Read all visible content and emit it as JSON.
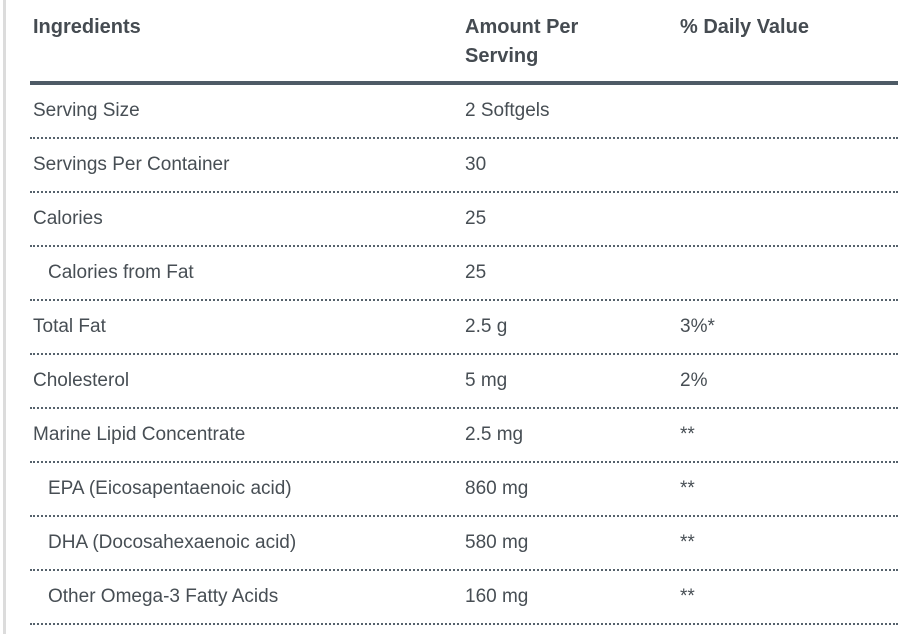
{
  "table": {
    "columns": [
      "Ingredients",
      "Amount Per Serving",
      "% Daily Value"
    ],
    "rows": [
      {
        "ingredient": "Serving Size",
        "amount": "2 Softgels",
        "daily_value": "",
        "indent": false
      },
      {
        "ingredient": "Servings Per Container",
        "amount": "30",
        "daily_value": "",
        "indent": false
      },
      {
        "ingredient": "Calories",
        "amount": "25",
        "daily_value": "",
        "indent": false
      },
      {
        "ingredient": "Calories from Fat",
        "amount": "25",
        "daily_value": "",
        "indent": true
      },
      {
        "ingredient": "Total Fat",
        "amount": "2.5 g",
        "daily_value": "3%*",
        "indent": false
      },
      {
        "ingredient": "Cholesterol",
        "amount": "5 mg",
        "daily_value": "2%",
        "indent": false
      },
      {
        "ingredient": "Marine Lipid Concentrate",
        "amount": "2.5 mg",
        "daily_value": "**",
        "indent": false
      },
      {
        "ingredient": "EPA (Eicosapentaenoic acid)",
        "amount": "860 mg",
        "daily_value": "**",
        "indent": true
      },
      {
        "ingredient": "DHA (Docosahexaenoic acid)",
        "amount": "580 mg",
        "daily_value": "**",
        "indent": true
      },
      {
        "ingredient": "Other Omega-3 Fatty Acids",
        "amount": "160 mg",
        "daily_value": "**",
        "indent": true
      }
    ]
  },
  "colors": {
    "body_text": "#474e54",
    "header_text": "#454b51",
    "header_border": "#4e5b66",
    "dotted_border": "#56626c",
    "edge_strip": "#dcdcdc",
    "background": "#ffffff"
  }
}
